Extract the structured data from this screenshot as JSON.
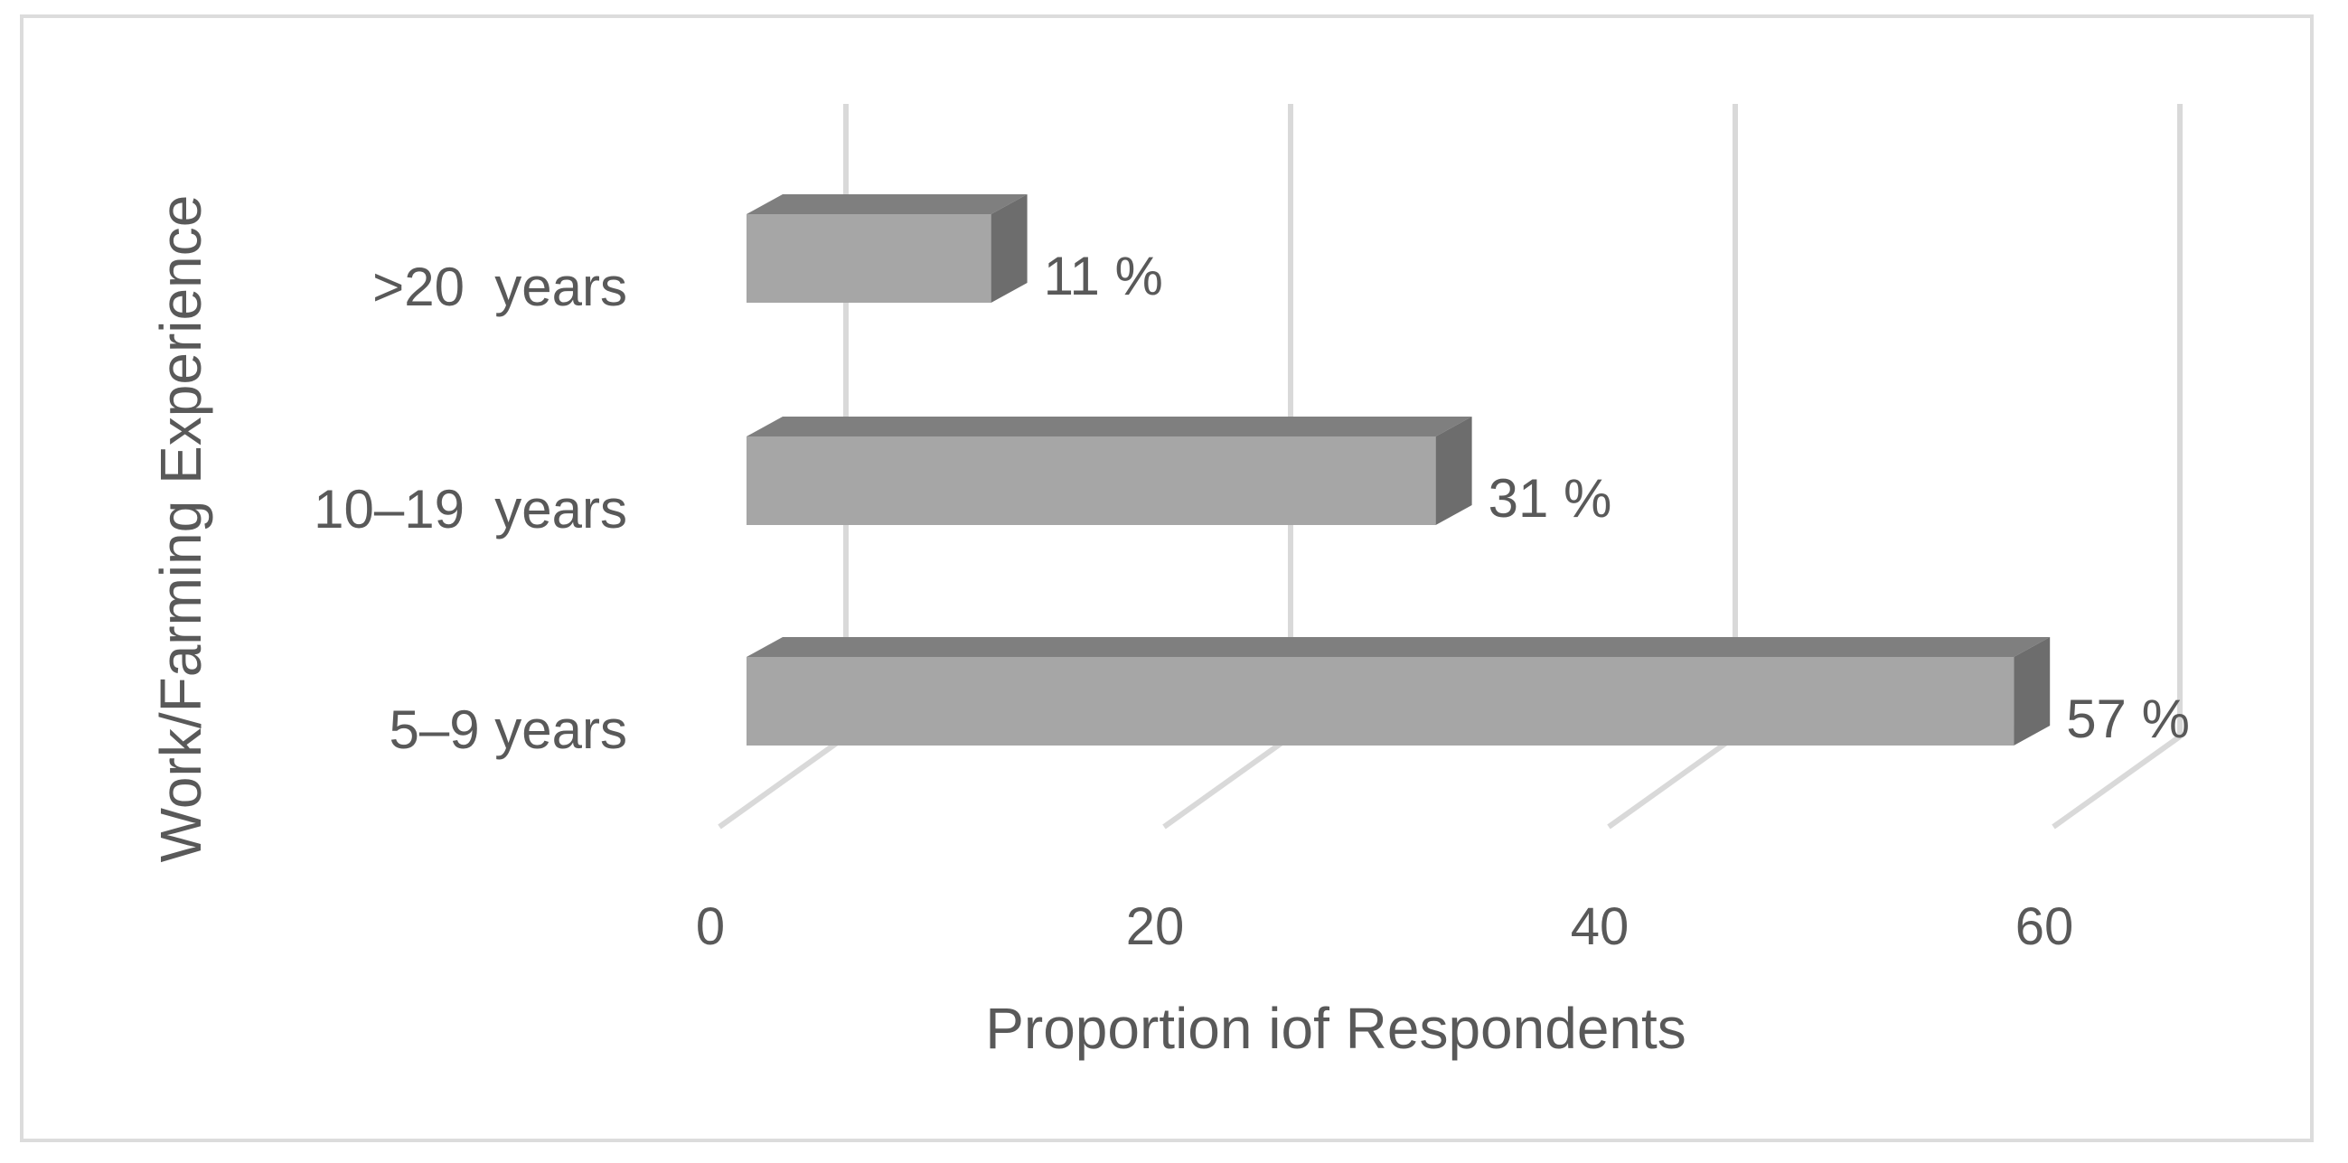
{
  "chart_data": {
    "type": "bar",
    "orientation": "horizontal",
    "style": "3d",
    "categories": [
      ">20  years",
      "10–19  years",
      "5–9 years"
    ],
    "values": [
      11,
      31,
      57
    ],
    "data_labels": [
      "11 %",
      "31 %",
      "57 %"
    ],
    "xlabel": "Proportion iof Respondents",
    "ylabel": "Work/Farming Experience",
    "xlim": [
      0,
      60
    ],
    "xticks": [
      "0",
      "20",
      "40",
      "60"
    ],
    "grid": true,
    "legend": "none"
  },
  "colors": {
    "bar_front": "#a6a6a6",
    "bar_top": "#7f7f7f",
    "bar_side": "#6d6d6d",
    "gridline": "#d9d9d9",
    "text": "#595959"
  }
}
